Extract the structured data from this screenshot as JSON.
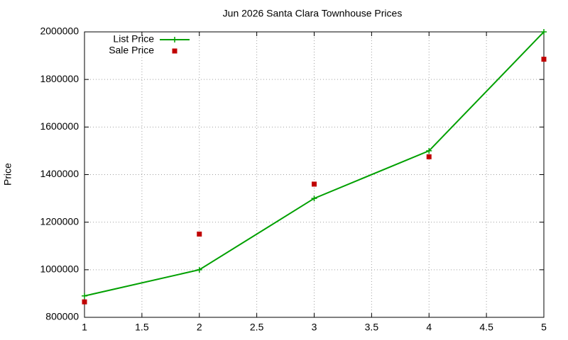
{
  "chart_data": {
    "type": "line",
    "title": "Jun 2026 Santa Clara Townhouse Prices",
    "y_label": "Price",
    "x": [
      1,
      2,
      3,
      4,
      5
    ],
    "series": [
      {
        "name": "List Price",
        "color": "#00a000",
        "style": "linespoints",
        "values": [
          890000,
          1000000,
          1300000,
          1500000,
          2000000
        ]
      },
      {
        "name": "Sale Price",
        "color": "#c00000",
        "style": "points",
        "values": [
          865000,
          1150000,
          1360000,
          1475000,
          1885000
        ]
      }
    ],
    "xlim": [
      1,
      5
    ],
    "xticks": [
      1,
      1.5,
      2,
      2.5,
      3,
      3.5,
      4,
      4.5,
      5
    ],
    "ylim": [
      800000,
      2000000
    ],
    "yticks": [
      800000,
      1000000,
      1200000,
      1400000,
      1600000,
      1800000,
      2000000
    ],
    "grid": true,
    "legend": "top-left"
  }
}
